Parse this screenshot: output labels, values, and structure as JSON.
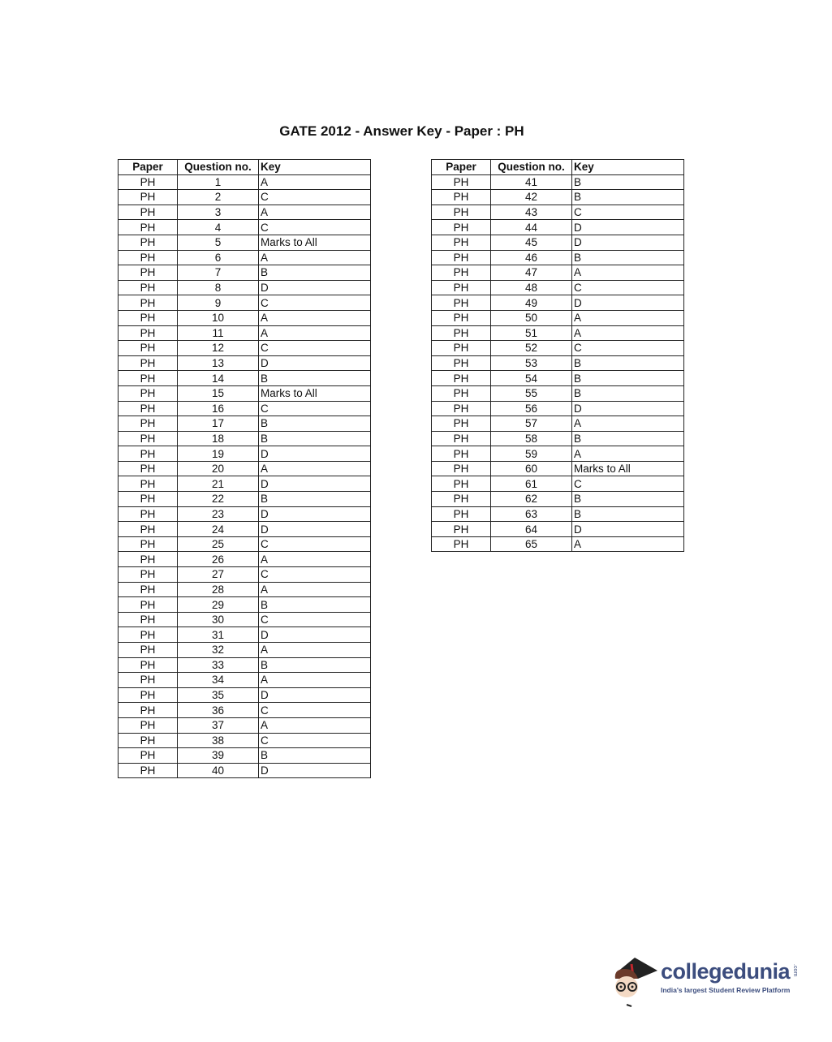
{
  "title": "GATE 2012 - Answer Key - Paper : PH",
  "headers": {
    "paper": "Paper",
    "question": "Question no.",
    "key": "Key"
  },
  "left_table": [
    [
      "PH",
      "1",
      "A"
    ],
    [
      "PH",
      "2",
      "C"
    ],
    [
      "PH",
      "3",
      "A"
    ],
    [
      "PH",
      "4",
      "C"
    ],
    [
      "PH",
      "5",
      "Marks to All"
    ],
    [
      "PH",
      "6",
      "A"
    ],
    [
      "PH",
      "7",
      "B"
    ],
    [
      "PH",
      "8",
      "D"
    ],
    [
      "PH",
      "9",
      "C"
    ],
    [
      "PH",
      "10",
      "A"
    ],
    [
      "PH",
      "11",
      "A"
    ],
    [
      "PH",
      "12",
      "C"
    ],
    [
      "PH",
      "13",
      "D"
    ],
    [
      "PH",
      "14",
      "B"
    ],
    [
      "PH",
      "15",
      "Marks to All"
    ],
    [
      "PH",
      "16",
      "C"
    ],
    [
      "PH",
      "17",
      "B"
    ],
    [
      "PH",
      "18",
      "B"
    ],
    [
      "PH",
      "19",
      "D"
    ],
    [
      "PH",
      "20",
      "A"
    ],
    [
      "PH",
      "21",
      "D"
    ],
    [
      "PH",
      "22",
      "B"
    ],
    [
      "PH",
      "23",
      "D"
    ],
    [
      "PH",
      "24",
      "D"
    ],
    [
      "PH",
      "25",
      "C"
    ],
    [
      "PH",
      "26",
      "A"
    ],
    [
      "PH",
      "27",
      "C"
    ],
    [
      "PH",
      "28",
      "A"
    ],
    [
      "PH",
      "29",
      "B"
    ],
    [
      "PH",
      "30",
      "C"
    ],
    [
      "PH",
      "31",
      "D"
    ],
    [
      "PH",
      "32",
      "A"
    ],
    [
      "PH",
      "33",
      "B"
    ],
    [
      "PH",
      "34",
      "A"
    ],
    [
      "PH",
      "35",
      "D"
    ],
    [
      "PH",
      "36",
      "C"
    ],
    [
      "PH",
      "37",
      "A"
    ],
    [
      "PH",
      "38",
      "C"
    ],
    [
      "PH",
      "39",
      "B"
    ],
    [
      "PH",
      "40",
      "D"
    ]
  ],
  "right_table": [
    [
      "PH",
      "41",
      "B"
    ],
    [
      "PH",
      "42",
      "B"
    ],
    [
      "PH",
      "43",
      "C"
    ],
    [
      "PH",
      "44",
      "D"
    ],
    [
      "PH",
      "45",
      "D"
    ],
    [
      "PH",
      "46",
      "B"
    ],
    [
      "PH",
      "47",
      "A"
    ],
    [
      "PH",
      "48",
      "C"
    ],
    [
      "PH",
      "49",
      "D"
    ],
    [
      "PH",
      "50",
      "A"
    ],
    [
      "PH",
      "51",
      "A"
    ],
    [
      "PH",
      "52",
      "C"
    ],
    [
      "PH",
      "53",
      "B"
    ],
    [
      "PH",
      "54",
      "B"
    ],
    [
      "PH",
      "55",
      "B"
    ],
    [
      "PH",
      "56",
      "D"
    ],
    [
      "PH",
      "57",
      "A"
    ],
    [
      "PH",
      "58",
      "B"
    ],
    [
      "PH",
      "59",
      "A"
    ],
    [
      "PH",
      "60",
      "Marks to All"
    ],
    [
      "PH",
      "61",
      "C"
    ],
    [
      "PH",
      "62",
      "B"
    ],
    [
      "PH",
      "63",
      "B"
    ],
    [
      "PH",
      "64",
      "D"
    ],
    [
      "PH",
      "65",
      "A"
    ]
  ],
  "logo": {
    "name": "collegedunia",
    "suffix": ".com",
    "tagline": "India's largest Student Review Platform",
    "color": "#3c4d7e",
    "icon": "student-mascot-icon"
  }
}
